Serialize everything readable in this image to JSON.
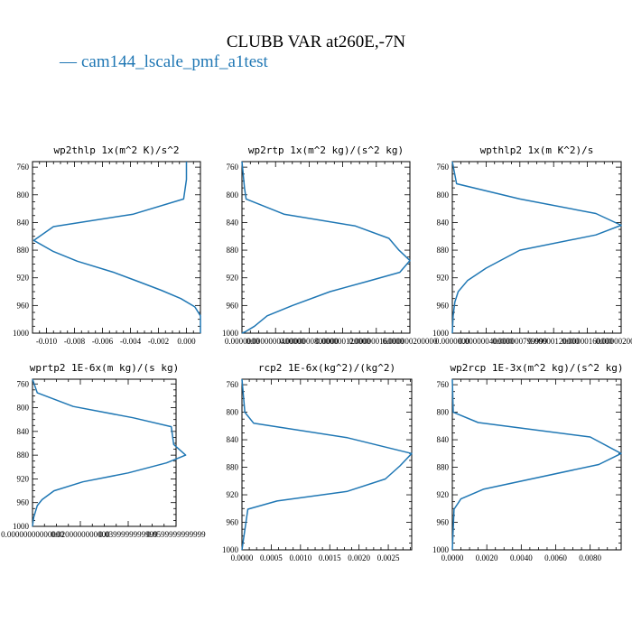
{
  "figure": {
    "title": "CLUBB VAR at260E,-7N",
    "legend": [
      {
        "name": "cam144_lscale_pmf_a1test",
        "color": "#1f77b4"
      }
    ]
  },
  "chart_data": [
    {
      "type": "line",
      "title": "wp2thlp  1x(m^2 K)/s^2",
      "xlim": [
        -0.011,
        0.001
      ],
      "ylim": [
        1000,
        752
      ],
      "xticks": [
        -0.01,
        -0.008,
        -0.006,
        -0.004,
        -0.002,
        0.0
      ],
      "xtick_labels": [
        "-0.010",
        "-0.008",
        "-0.006",
        "-0.004",
        "-0.002",
        "0.000"
      ],
      "yticks": [
        760,
        800,
        840,
        880,
        920,
        960,
        1000
      ],
      "ytick_labels": [
        "760",
        "800",
        "840",
        "880",
        "920",
        "960",
        "1000"
      ],
      "series": [
        {
          "color": "#1f77b4",
          "x": [
            0.0,
            0.0,
            -0.0002,
            -0.0038,
            -0.0095,
            -0.0109,
            -0.0095,
            -0.0078,
            -0.0052,
            -0.0035,
            -0.0018,
            -0.0004,
            0.0006,
            0.001,
            0.001
          ],
          "y": [
            752,
            778,
            806,
            828,
            846,
            866,
            882,
            896,
            912,
            925,
            938,
            950,
            962,
            975,
            1000
          ]
        }
      ]
    },
    {
      "type": "line",
      "title": "wp2rtp  1x(m^2 kg)/(s^2 kg)",
      "xlim": [
        0,
        2e-07
      ],
      "ylim": [
        1000,
        752
      ],
      "xticks": [
        0,
        4e-08,
        8e-08,
        1.2e-07,
        1.6e-07,
        2e-07
      ],
      "xtick_labels": [
        "0.0000000",
        "0.0000000400000",
        "0.0000000800000",
        "0.000000120000",
        "0.000000160000",
        "0.000000200000"
      ],
      "yticks": [
        760,
        800,
        840,
        880,
        920,
        960,
        1000
      ],
      "ytick_labels": [
        "760",
        "800",
        "840",
        "880",
        "920",
        "960",
        "1000"
      ],
      "series": [
        {
          "color": "#1f77b4",
          "x": [
            0,
            3e-09,
            5e-09,
            5e-08,
            1.35e-07,
            1.75e-07,
            1.87e-07,
            2e-07,
            1.88e-07,
            1.5e-07,
            1.05e-07,
            6e-08,
            3e-08,
            1.5e-08,
            4e-09,
            0
          ],
          "y": [
            752,
            790,
            806,
            828,
            845,
            863,
            880,
            895,
            912,
            925,
            940,
            960,
            975,
            990,
            998,
            1000
          ]
        }
      ]
    },
    {
      "type": "line",
      "title": "wpthlp2  1x(m K^2)/s",
      "xlim": [
        0,
        2e-06
      ],
      "ylim": [
        1000,
        752
      ],
      "xticks": [
        0,
        4e-07,
        8e-07,
        1.2e-06,
        1.6e-06,
        2e-06
      ],
      "xtick_labels": [
        "0.0000000",
        "0.000000400000",
        "0.000000799999",
        "0.00000120000",
        "0.00000160000",
        "0.00000200000"
      ],
      "yticks": [
        760,
        800,
        840,
        880,
        920,
        960,
        1000
      ],
      "ytick_labels": [
        "760",
        "800",
        "840",
        "880",
        "920",
        "960",
        "1000"
      ],
      "series": [
        {
          "color": "#1f77b4",
          "x": [
            0,
            5e-08,
            8e-07,
            1.7e-06,
            2e-06,
            1.7e-06,
            8e-07,
            4e-07,
            1.8e-07,
            7e-08,
            3e-08,
            1e-08,
            0
          ],
          "y": [
            752,
            784,
            806,
            827,
            844,
            858,
            880,
            906,
            924,
            940,
            955,
            975,
            1000
          ]
        }
      ]
    },
    {
      "type": "line",
      "title": "wprtp2  1E-6x(m kg)/(s kg)",
      "xlim": [
        0,
        6e-08
      ],
      "ylim": [
        1000,
        752
      ],
      "xticks": [
        0,
        2e-08,
        4e-08,
        6e-08
      ],
      "xtick_labels": [
        "0.00000000000000",
        "0.0200000000000",
        "0.0399999999999",
        "0.0599999999999"
      ],
      "yticks": [
        760,
        800,
        840,
        880,
        920,
        960,
        1000
      ],
      "ytick_labels": [
        "760",
        "800",
        "840",
        "880",
        "920",
        "960",
        "1000"
      ],
      "series": [
        {
          "color": "#1f77b4",
          "x": [
            0,
            2e-09,
            1.7e-08,
            4.2e-08,
            5.8e-08,
            5.9e-08,
            6.4e-08,
            5.6e-08,
            4e-08,
            2.1e-08,
            9e-09,
            4e-09,
            2e-09,
            5e-10,
            0
          ],
          "y": [
            752,
            775,
            798,
            817,
            832,
            862,
            880,
            893,
            910,
            925,
            940,
            955,
            965,
            985,
            1000
          ]
        }
      ]
    },
    {
      "type": "line",
      "title": "rcp2  1E-6x(kg^2)/(kg^2)",
      "xlim": [
        0,
        0.0029
      ],
      "ylim": [
        1000,
        752
      ],
      "xticks": [
        0,
        0.0005,
        0.001,
        0.0015,
        0.002,
        0.0025
      ],
      "xtick_labels": [
        "0.0000",
        "0.0005",
        "0.0010",
        "0.0015",
        "0.0020",
        "0.0025"
      ],
      "yticks": [
        760,
        800,
        840,
        880,
        920,
        960,
        1000
      ],
      "ytick_labels": [
        "760",
        "800",
        "840",
        "880",
        "920",
        "960",
        "1000"
      ],
      "series": [
        {
          "color": "#1f77b4",
          "x": [
            0,
            5e-05,
            0.0002,
            0.0018,
            0.0029,
            0.0027,
            0.00245,
            0.0018,
            0.0006,
            0.0001,
            0
          ],
          "y": [
            752,
            800,
            816,
            837,
            860,
            878,
            897,
            915,
            929,
            941,
            1000
          ]
        }
      ]
    },
    {
      "type": "line",
      "title": "wp2rcp  1E-3x(m^2 kg)/(s^2 kg)",
      "xlim": [
        0,
        0.0098
      ],
      "ylim": [
        1000,
        752
      ],
      "xticks": [
        0,
        0.002,
        0.004,
        0.006,
        0.008
      ],
      "xtick_labels": [
        "0.0000",
        "0.0020",
        "0.0040",
        "0.0060",
        "0.0080"
      ],
      "yticks": [
        760,
        800,
        840,
        880,
        920,
        960,
        1000
      ],
      "ytick_labels": [
        "760",
        "800",
        "840",
        "880",
        "920",
        "960",
        "1000"
      ],
      "series": [
        {
          "color": "#1f77b4",
          "x": [
            0,
            5e-05,
            0.0015,
            0.008,
            0.0098,
            0.0085,
            0.0018,
            0.0005,
            0.0001,
            0
          ],
          "y": [
            752,
            800,
            815,
            836,
            860,
            876,
            912,
            926,
            941,
            1000
          ]
        }
      ]
    }
  ]
}
